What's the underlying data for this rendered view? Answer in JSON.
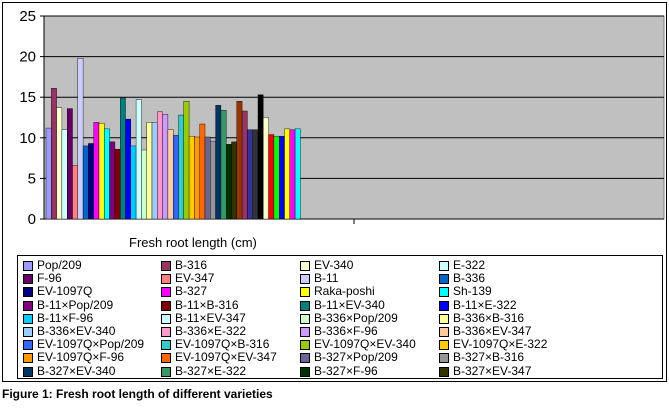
{
  "figure": {
    "caption": "Figure 1: Fresh root length of different varieties"
  },
  "chart_data": {
    "type": "bar",
    "xlabel": "Fresh root length (cm)",
    "ylabel": "",
    "ylim": [
      0,
      25
    ],
    "yticks": [
      0,
      5,
      10,
      15,
      20,
      25
    ],
    "grid": true,
    "plot_background": "#c0c0c0",
    "legend_position": "bottom",
    "categories": [
      "Fresh root length (cm)"
    ],
    "series": [
      {
        "name": "Pop/209",
        "value": 11.2,
        "color": "#9999ff"
      },
      {
        "name": "B-316",
        "value": 16.1,
        "color": "#993366"
      },
      {
        "name": "EV-340",
        "value": 13.7,
        "color": "#ffffcc"
      },
      {
        "name": "E-322",
        "value": 11.0,
        "color": "#ccffff"
      },
      {
        "name": "F-96",
        "value": 13.6,
        "color": "#660066"
      },
      {
        "name": "EV-347",
        "value": 6.6,
        "color": "#ff8080"
      },
      {
        "name": "B-11",
        "value": 19.8,
        "color": "#ccccff"
      },
      {
        "name": "B-336",
        "value": 9.0,
        "color": "#0066cc"
      },
      {
        "name": "EV-1097Q",
        "value": 9.3,
        "color": "#000080"
      },
      {
        "name": "B-327",
        "value": 11.9,
        "color": "#ff00ff"
      },
      {
        "name": "Raka-poshi",
        "value": 11.8,
        "color": "#ffff00"
      },
      {
        "name": "Sh-139",
        "value": 11.1,
        "color": "#00ffff"
      },
      {
        "name": "B-11×Pop/209",
        "value": 9.5,
        "color": "#800080"
      },
      {
        "name": "B-11×B-316",
        "value": 8.6,
        "color": "#800000"
      },
      {
        "name": "B-11×EV-340",
        "value": 14.9,
        "color": "#008080"
      },
      {
        "name": "B-11×E-322",
        "value": 12.3,
        "color": "#0000ff"
      },
      {
        "name": "B-11×F-96",
        "value": 9.0,
        "color": "#00ccff"
      },
      {
        "name": "B-11×EV-347",
        "value": 14.7,
        "color": "#ccffff"
      },
      {
        "name": "B-336×Pop/209",
        "value": 8.5,
        "color": "#ccffcc"
      },
      {
        "name": "B-336×B-316",
        "value": 11.9,
        "color": "#ffff99"
      },
      {
        "name": "B-336×EV-340",
        "value": 11.9,
        "color": "#99ccff"
      },
      {
        "name": "B-336×E-322",
        "value": 13.2,
        "color": "#ff99cc"
      },
      {
        "name": "B-336×F-96",
        "value": 12.9,
        "color": "#cc99ff"
      },
      {
        "name": "B-336×EV-347",
        "value": 11.0,
        "color": "#ffcc99"
      },
      {
        "name": "EV-1097Q×Pop/209",
        "value": 10.3,
        "color": "#3366ff"
      },
      {
        "name": "EV-1097Q×B-316",
        "value": 12.8,
        "color": "#33cccc"
      },
      {
        "name": "EV-1097Q×EV-340",
        "value": 14.5,
        "color": "#99cc00"
      },
      {
        "name": "EV-1097Q×E-322",
        "value": 10.2,
        "color": "#ffcc00"
      },
      {
        "name": "EV-1097Q×F-96",
        "value": 10.1,
        "color": "#ff9900"
      },
      {
        "name": "EV-1097Q×EV-347",
        "value": 11.7,
        "color": "#ff6600"
      },
      {
        "name": "B-327×Pop/209",
        "value": 10.1,
        "color": "#666699"
      },
      {
        "name": "B-327×B-316",
        "value": 9.6,
        "color": "#969696"
      },
      {
        "name": "B-327×EV-340",
        "value": 14.0,
        "color": "#003366"
      },
      {
        "name": "B-327×E-322",
        "value": 13.4,
        "color": "#339966"
      },
      {
        "name": "B-327×F-96",
        "value": 9.2,
        "color": "#003300"
      },
      {
        "name": "B-327×EV-347",
        "value": 9.5,
        "color": "#333300"
      },
      {
        "name": "",
        "value": 14.5,
        "color": "#993300"
      },
      {
        "name": "",
        "value": 13.3,
        "color": "#993366"
      },
      {
        "name": "",
        "value": 11.0,
        "color": "#333399"
      },
      {
        "name": "",
        "value": 11.0,
        "color": "#333333"
      },
      {
        "name": "",
        "value": 15.3,
        "color": "#000000"
      },
      {
        "name": "",
        "value": 12.5,
        "color": "#ffffcc"
      },
      {
        "name": "",
        "value": 10.4,
        "color": "#ff0000"
      },
      {
        "name": "",
        "value": 10.2,
        "color": "#00ff00"
      },
      {
        "name": "",
        "value": 10.2,
        "color": "#0000ff"
      },
      {
        "name": "",
        "value": 11.1,
        "color": "#ffff00"
      },
      {
        "name": "",
        "value": 11.0,
        "color": "#ff00ff"
      },
      {
        "name": "",
        "value": 11.1,
        "color": "#00ffff"
      }
    ]
  }
}
